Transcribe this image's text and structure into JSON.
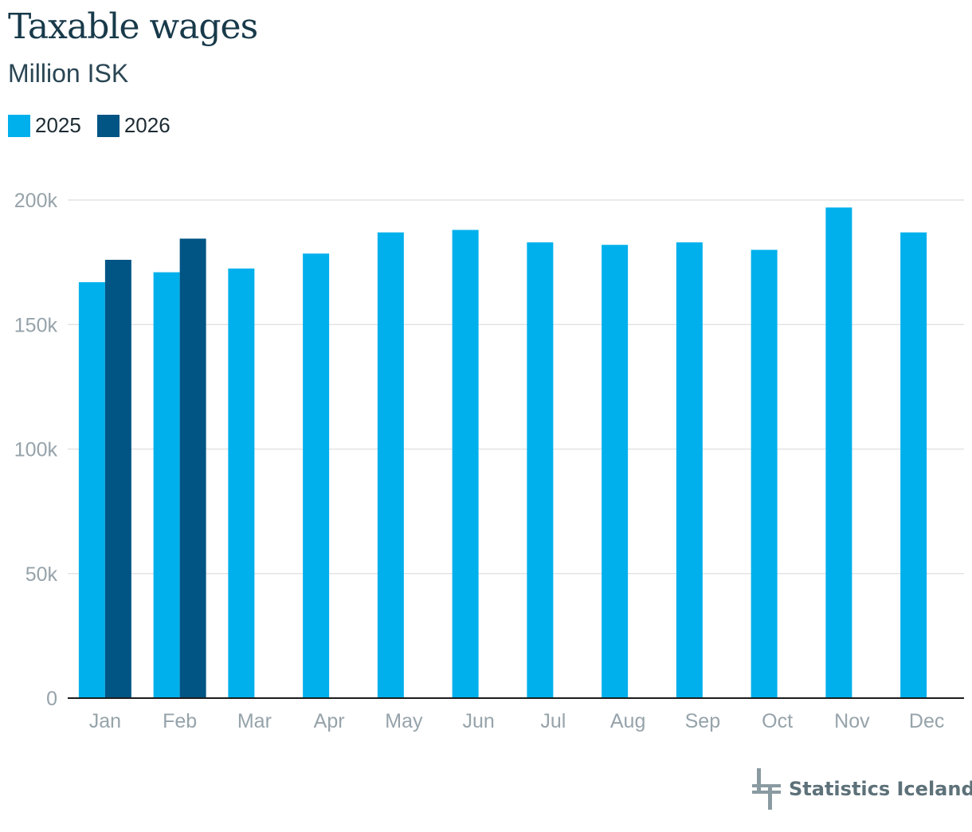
{
  "title": "Taxable wages",
  "subtitle": "Million ISK",
  "brand": {
    "name": "Statistics Iceland",
    "logo_icon": "statistics-iceland-logo"
  },
  "colors": {
    "series_2025": "#00b0ec",
    "series_2026": "#005584",
    "grid": "#e3e3e3",
    "axis": "#1c1c1c",
    "tick_text": "#96a3aa"
  },
  "chart_data": {
    "type": "bar",
    "title": "Taxable wages",
    "subtitle": "Million ISK",
    "xlabel": "",
    "ylabel": "",
    "categories": [
      "Jan",
      "Feb",
      "Mar",
      "Apr",
      "May",
      "Jun",
      "Jul",
      "Aug",
      "Sep",
      "Oct",
      "Nov",
      "Dec"
    ],
    "series": [
      {
        "name": "2025",
        "values": [
          167000,
          171000,
          172500,
          178500,
          187000,
          188000,
          183000,
          182000,
          183000,
          180000,
          197000,
          187000
        ]
      },
      {
        "name": "2026",
        "values": [
          176000,
          184500,
          null,
          null,
          null,
          null,
          null,
          null,
          null,
          null,
          null,
          null
        ]
      }
    ],
    "ylim": [
      0,
      200000
    ],
    "yticks": [
      0,
      50000,
      100000,
      150000,
      200000
    ],
    "ytick_labels": [
      "0",
      "50k",
      "100k",
      "150k",
      "200k"
    ],
    "grid": true,
    "legend": "top-left"
  }
}
